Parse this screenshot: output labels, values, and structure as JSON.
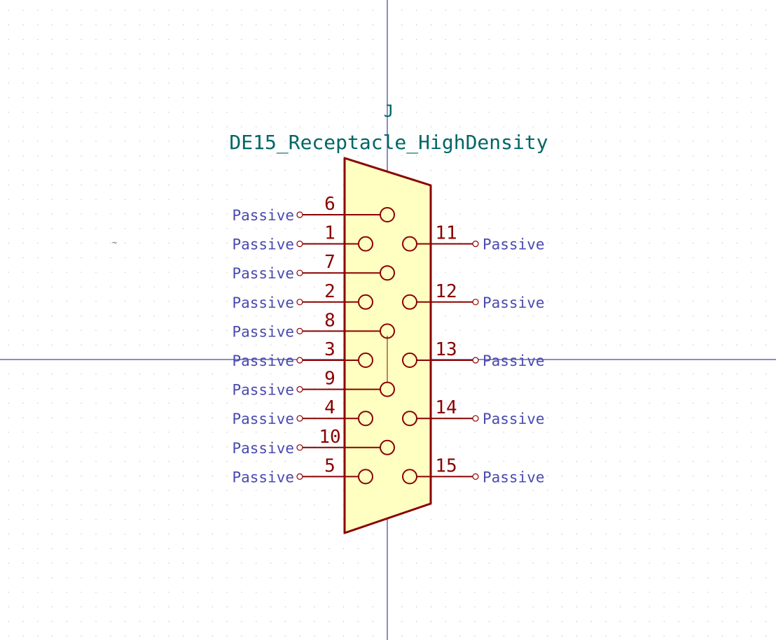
{
  "symbol": {
    "reference": "J",
    "value": "DE15_Receptacle_HighDensity",
    "pin_type_label": "Passive",
    "pins": [
      {
        "number": "6",
        "side": "left",
        "electrical_type": "Passive"
      },
      {
        "number": "1",
        "side": "left",
        "electrical_type": "Passive"
      },
      {
        "number": "7",
        "side": "left",
        "electrical_type": "Passive"
      },
      {
        "number": "2",
        "side": "left",
        "electrical_type": "Passive"
      },
      {
        "number": "8",
        "side": "left",
        "electrical_type": "Passive"
      },
      {
        "number": "3",
        "side": "left",
        "electrical_type": "Passive"
      },
      {
        "number": "9",
        "side": "left",
        "electrical_type": "Passive"
      },
      {
        "number": "4",
        "side": "left",
        "electrical_type": "Passive"
      },
      {
        "number": "10",
        "side": "left",
        "electrical_type": "Passive"
      },
      {
        "number": "5",
        "side": "left",
        "electrical_type": "Passive"
      },
      {
        "number": "11",
        "side": "right",
        "electrical_type": "Passive"
      },
      {
        "number": "12",
        "side": "right",
        "electrical_type": "Passive"
      },
      {
        "number": "13",
        "side": "right",
        "electrical_type": "Passive"
      },
      {
        "number": "14",
        "side": "right",
        "electrical_type": "Passive"
      },
      {
        "number": "15",
        "side": "right",
        "electrical_type": "Passive"
      }
    ]
  },
  "colors": {
    "background": "#ffffff",
    "grid_dot": "#a8a8a8",
    "crosshair": "#1a1a8c",
    "body_outline": "#8b0000",
    "body_fill": "#ffffc2",
    "pin_line": "#8b0000",
    "pin_number": "#8b0000",
    "field_text": "#006666",
    "pin_type_text": "#4a4ab0"
  }
}
